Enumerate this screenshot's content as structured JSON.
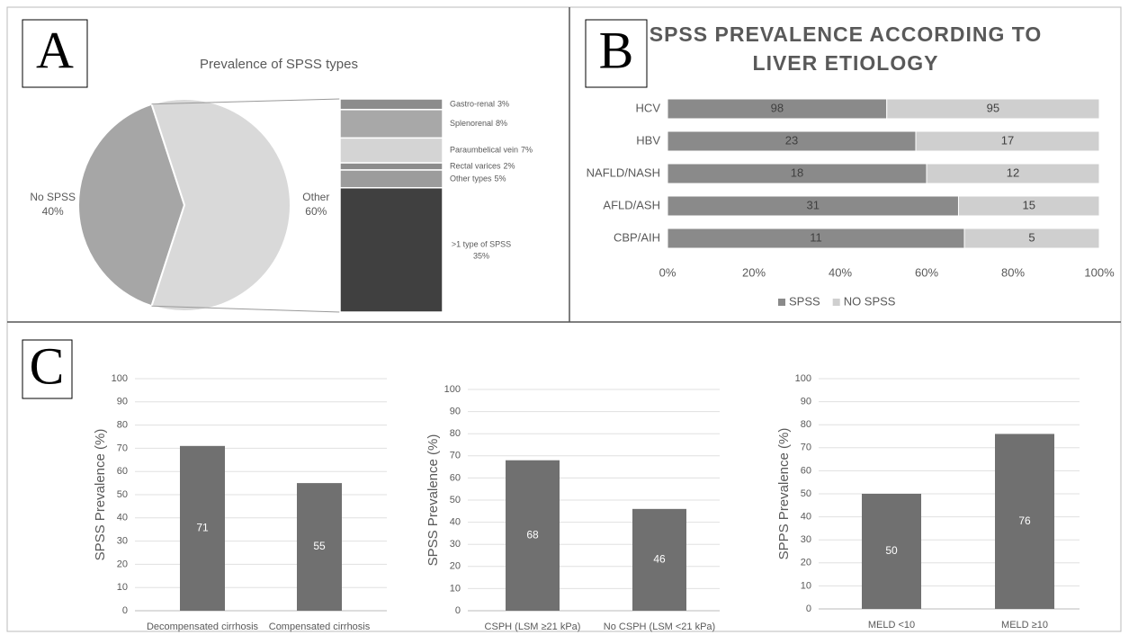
{
  "panel_labels": [
    "A",
    "B",
    "C"
  ],
  "chart_data": [
    {
      "type": "pie",
      "title": "Prevalence of SPSS types",
      "categories": [
        "No SPSS",
        "Other"
      ],
      "values": [
        40,
        60
      ],
      "value_labels": [
        "40%",
        "60%"
      ],
      "colors": [
        "#a6a6a6",
        "#d9d9d9"
      ],
      "breakdown": {
        "categories": [
          "Gastro-renal",
          "Splenorenal",
          "Paraumbelical vein",
          "Rectal varices",
          "Other types",
          ">1 type of SPSS"
        ],
        "values": [
          3,
          8,
          7,
          2,
          5,
          35
        ],
        "value_labels": [
          "3%",
          "8%",
          "7%",
          "2%",
          "5%",
          "35%"
        ],
        "colors": [
          "#8c8c8c",
          "#a8a8a8",
          "#d4d4d4",
          "#8c8c8c",
          "#9c9c9c",
          "#404040"
        ]
      }
    },
    {
      "type": "bar",
      "orientation": "horizontal",
      "stacking": "percent",
      "title": "SPSS PREVALENCE ACCORDING TO LIVER ETIOLOGY",
      "categories": [
        "HCV",
        "HBV",
        "NAFLD/NASH",
        "AFLD/ASH",
        "CBP/AIH"
      ],
      "series": [
        {
          "name": "SPSS",
          "color": "#8a8a8a",
          "values": [
            98,
            23,
            18,
            31,
            11
          ]
        },
        {
          "name": "NO SPSS",
          "color": "#cfcfcf",
          "values": [
            95,
            17,
            12,
            15,
            5
          ]
        }
      ],
      "xlim": [
        0,
        100
      ],
      "xticks": [
        {
          "value": 0,
          "label": "0%"
        },
        {
          "value": 20,
          "label": "20%"
        },
        {
          "value": 40,
          "label": "40%"
        },
        {
          "value": 60,
          "label": "60%"
        },
        {
          "value": 80,
          "label": "80%"
        },
        {
          "value": 100,
          "label": "100%"
        }
      ],
      "legend": "bottom",
      "grid": false
    },
    {
      "type": "bar",
      "y_label": "SPSS Prevalence (%)",
      "categories": [
        "Decompensated cirrhosis",
        "Compensated cirrhosis"
      ],
      "values": [
        71,
        55
      ],
      "color": "#707070",
      "ylim": [
        0,
        100
      ],
      "yticks": [
        0,
        10,
        20,
        30,
        40,
        50,
        60,
        70,
        80,
        90,
        100
      ],
      "grid": true
    },
    {
      "type": "bar",
      "y_label": "SPSS Prevalence (%)",
      "categories": [
        "CSPH (LSM ≥21 kPa)",
        "No CSPH (LSM <21 kPa)"
      ],
      "values": [
        68,
        46
      ],
      "color": "#707070",
      "ylim": [
        0,
        100
      ],
      "yticks": [
        0,
        10,
        20,
        30,
        40,
        50,
        60,
        70,
        80,
        90,
        100
      ],
      "grid": true
    },
    {
      "type": "bar",
      "y_label": "SPPS Prevalence (%)",
      "categories": [
        "MELD <10",
        "MELD ≥10"
      ],
      "values": [
        50,
        76
      ],
      "color": "#707070",
      "ylim": [
        0,
        100
      ],
      "yticks": [
        0,
        10,
        20,
        30,
        40,
        50,
        60,
        70,
        80,
        90,
        100
      ],
      "grid": true
    }
  ]
}
